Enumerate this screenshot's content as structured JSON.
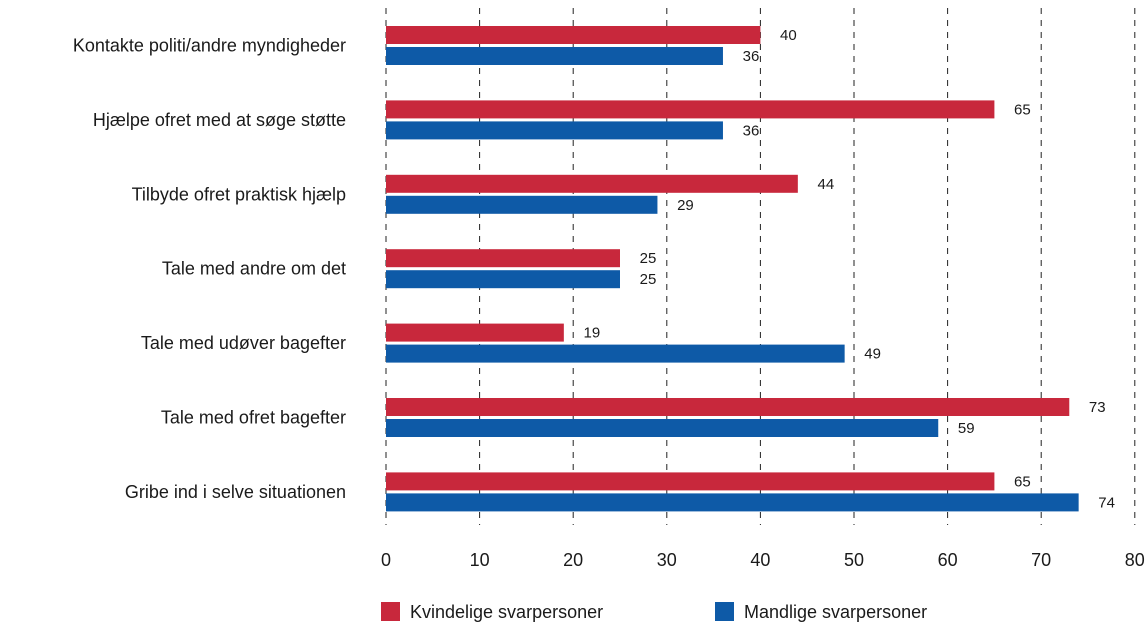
{
  "chart_data": {
    "type": "bar",
    "orientation": "horizontal",
    "categories": [
      "Kontakte politi/andre myndigheder",
      "Hjælpe ofret med at søge støtte",
      "Tilbyde ofret  praktisk hjælp",
      "Tale med andre om det",
      "Tale med udøver bagefter",
      "Tale med ofret bagefter",
      "Gribe ind i selve situationen"
    ],
    "series": [
      {
        "name": "Kvindelige svarpersoner",
        "color": "#c8283c",
        "values": [
          40,
          65,
          44,
          25,
          19,
          73,
          65
        ]
      },
      {
        "name": "Mandlige svarpersoner",
        "color": "#0e5aa7",
        "values": [
          36,
          36,
          29,
          25,
          49,
          59,
          74
        ]
      }
    ],
    "xlim": [
      0,
      80
    ],
    "xticks": [
      0,
      10,
      20,
      30,
      40,
      50,
      60,
      70,
      80
    ],
    "grid": "vertical dashed",
    "legend": "bottom",
    "title": "",
    "xlabel": "",
    "ylabel": ""
  }
}
